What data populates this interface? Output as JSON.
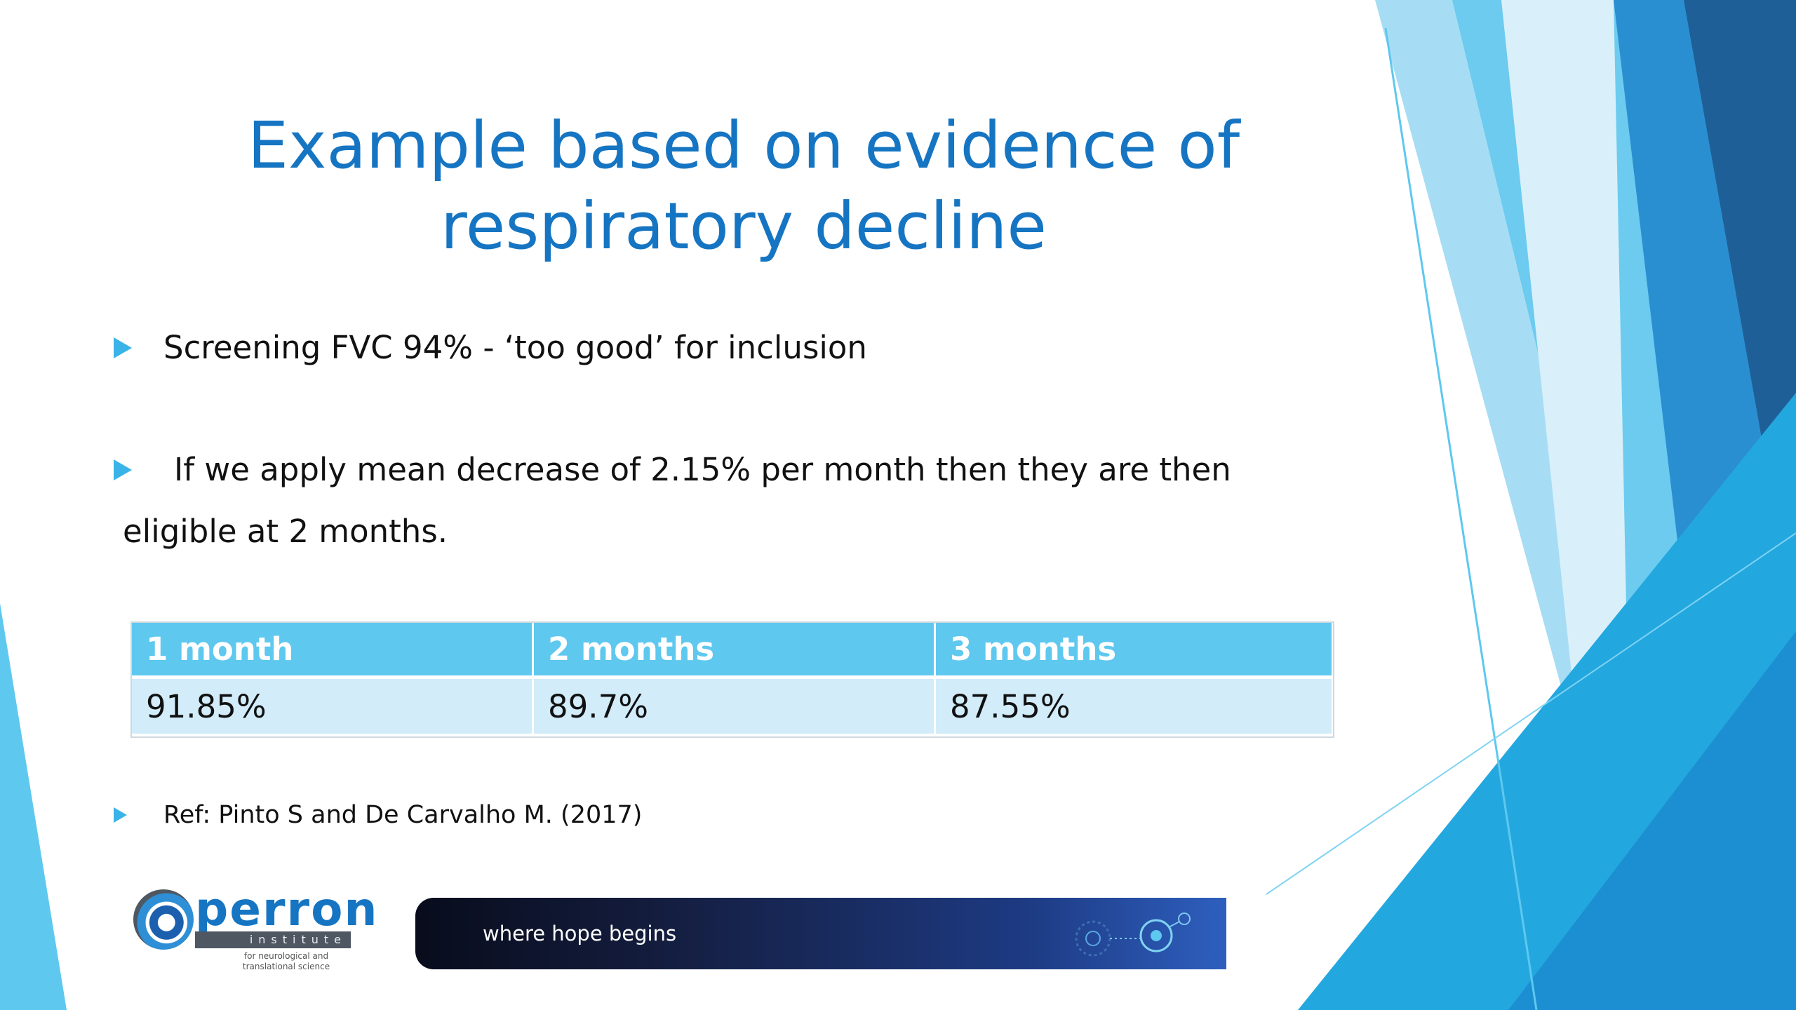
{
  "slide": {
    "title": "Example based on evidence of respiratory decline",
    "bullets": [
      "Screening FVC 94% - ‘too good’ for inclusion",
      "If we apply mean decrease of 2.15% per month then they are then eligible at 2 months."
    ],
    "reference": "Ref: Pinto S and De Carvalho M. (2017)"
  },
  "table": {
    "headers": [
      "1 month",
      "2 months",
      "3 months"
    ],
    "rows": [
      [
        "91.85%",
        "89.7%",
        "87.55%"
      ]
    ]
  },
  "footer": {
    "logo_word": "perron",
    "logo_bar_text": "institute",
    "logo_subtitle": "for neurological and translational science",
    "banner_text": "where hope begins"
  },
  "colors": {
    "title": "#1675c2",
    "bullet_arrow": "#3ab4e8",
    "table_header": "#5ec8ef",
    "table_row": "#d2ecfa"
  }
}
